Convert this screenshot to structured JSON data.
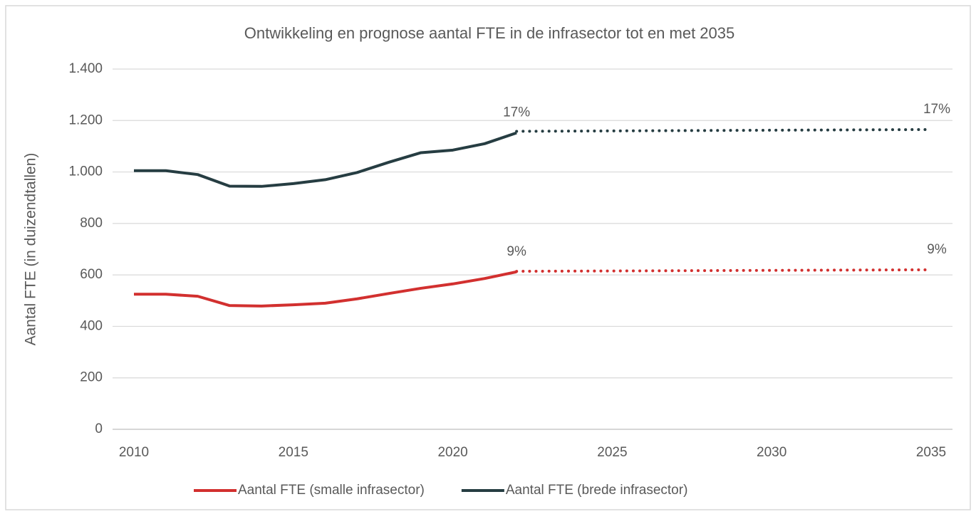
{
  "chart_data": {
    "type": "line",
    "title": "Ontwikkeling en prognose aantal FTE in de infrasector tot en met 2035",
    "y_label": "Aantal FTE (in duizendtallen)",
    "x": [
      2010,
      2011,
      2012,
      2013,
      2014,
      2015,
      2016,
      2017,
      2018,
      2019,
      2020,
      2021,
      2022
    ],
    "series": [
      {
        "name": "Aantal FTE (smalle infrasector)",
        "color": "#d2302f",
        "values": [
          525,
          525,
          517,
          481,
          479,
          484,
          490,
          507,
          528,
          548,
          565,
          586,
          612
        ],
        "forecast_x": [
          2022,
          2035
        ],
        "forecast_values": [
          614,
          620
        ],
        "end_labels": [
          "9%",
          "9%"
        ]
      },
      {
        "name": "Aantal FTE (brede infrasector)",
        "color": "#263d42",
        "values": [
          1005,
          1005,
          990,
          945,
          944,
          955,
          970,
          998,
          1038,
          1075,
          1085,
          1110,
          1152
        ],
        "forecast_x": [
          2022,
          2035
        ],
        "forecast_values": [
          1158,
          1165
        ],
        "end_labels": [
          "17%",
          "17%"
        ]
      }
    ],
    "xlim": [
      2010,
      2035
    ],
    "xticks": [
      2010,
      2015,
      2020,
      2025,
      2030,
      2035
    ],
    "ylim": [
      0,
      1400
    ],
    "yticks": [
      0,
      200,
      400,
      600,
      800,
      {
        "value": 1000,
        "label": "1.000"
      },
      {
        "value": 1200,
        "label": "1.200"
      },
      {
        "value": 1400,
        "label": "1.400"
      }
    ],
    "grid": true,
    "legend": "bottom"
  }
}
